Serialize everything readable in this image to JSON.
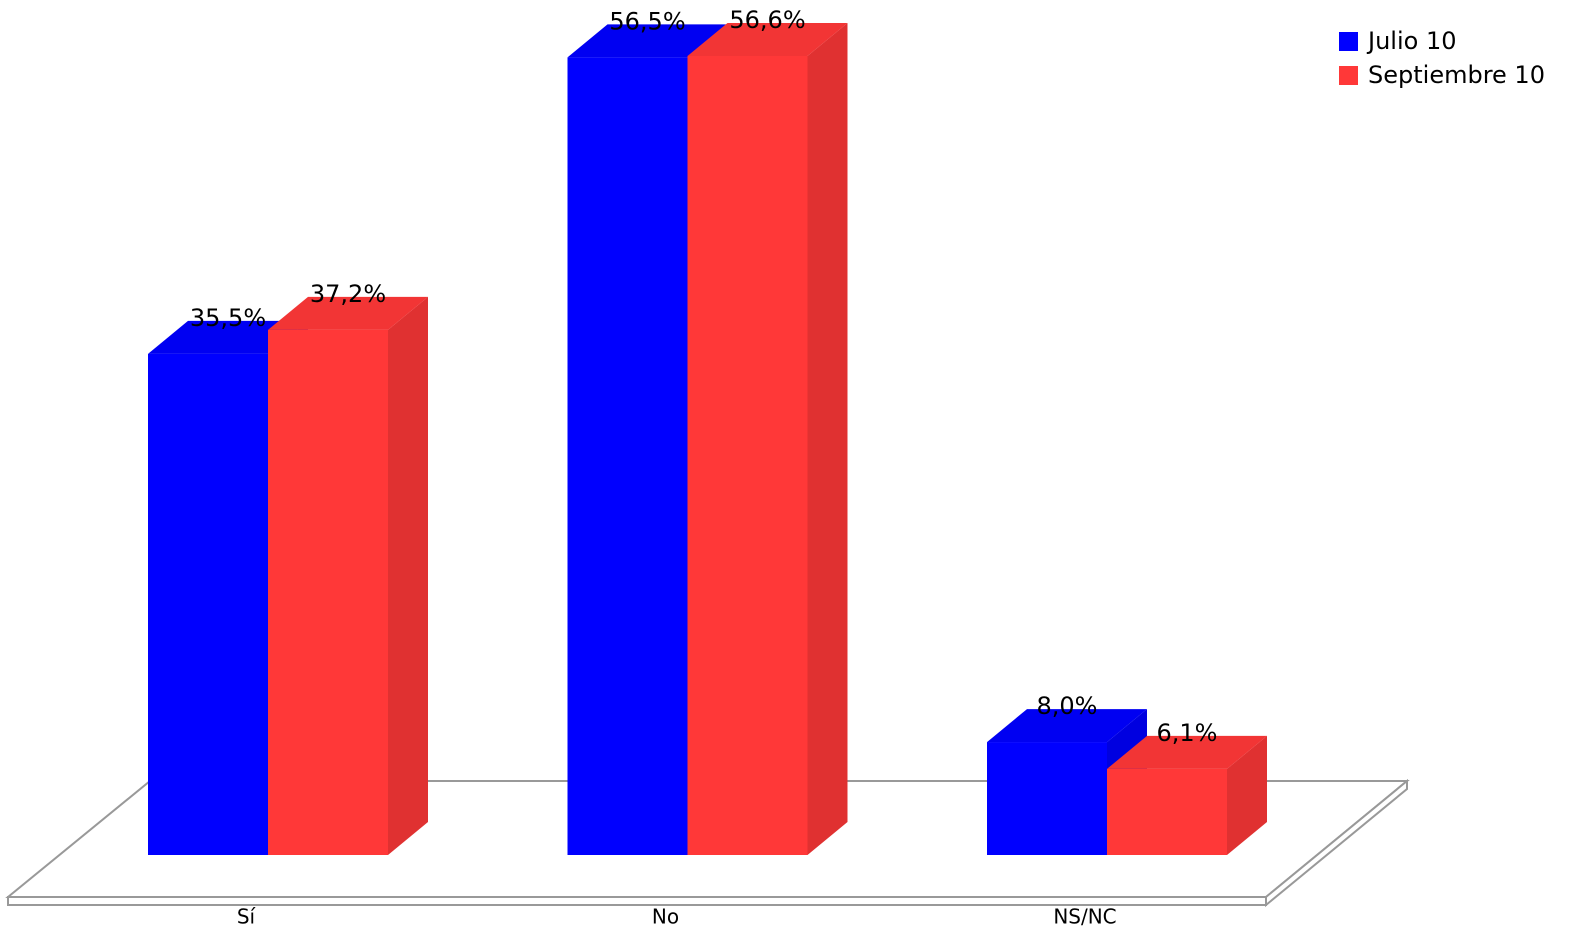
{
  "chart_data": {
    "type": "bar3d",
    "categories": [
      "Sí",
      "No",
      "NS/NC"
    ],
    "series": [
      {
        "name": "Julio 10",
        "color": "#0000ff",
        "values": [
          35.5,
          56.5,
          8.0
        ],
        "value_labels": [
          "35,5%",
          "56,5%",
          "8,0%"
        ]
      },
      {
        "name": "Septiembre 10",
        "color": "#ff3838",
        "values": [
          37.2,
          56.6,
          6.1
        ],
        "value_labels": [
          "37,2%",
          "56,6%",
          "6,1%"
        ]
      }
    ]
  }
}
